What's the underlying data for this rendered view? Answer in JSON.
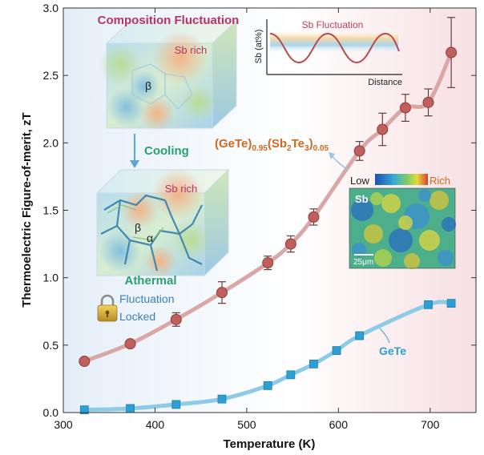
{
  "chart_data": {
    "type": "line",
    "title": "",
    "xlabel": "Temperature (K)",
    "ylabel": "Thermoelectric Figure-of-merit, zT",
    "xlim": [
      300,
      750
    ],
    "ylim": [
      0,
      3.0
    ],
    "x_ticks": [
      300,
      400,
      500,
      600,
      700
    ],
    "y_ticks": [
      0.0,
      0.5,
      1.0,
      1.5,
      2.0,
      2.5,
      3.0
    ],
    "x_tick_labels": [
      "300",
      "400",
      "500",
      "600",
      "700"
    ],
    "y_tick_labels": [
      "0.0",
      "0.5",
      "1.0",
      "1.5",
      "2.0",
      "2.5",
      "3.0"
    ],
    "series": [
      {
        "name": "(GeTe)0.95(Sb2Te3)0.05",
        "marker": "circle",
        "color": "#c0605e",
        "line_color": "#d9a8a6",
        "x": [
          323,
          373,
          423,
          473,
          523,
          548,
          573,
          623,
          648,
          673,
          698,
          723
        ],
        "y": [
          0.38,
          0.51,
          0.69,
          0.89,
          1.11,
          1.25,
          1.45,
          1.94,
          2.1,
          2.26,
          2.3,
          2.67
        ],
        "err": [
          0,
          0,
          0.05,
          0.08,
          0.05,
          0.06,
          0.06,
          0.07,
          0.12,
          0.1,
          0.1,
          0.26
        ]
      },
      {
        "name": "GeTe",
        "marker": "square",
        "color": "#2d9fd3",
        "line_color": "#8ccbe6",
        "x": [
          323,
          373,
          423,
          473,
          523,
          548,
          573,
          598,
          623,
          698,
          723
        ],
        "y": [
          0.02,
          0.03,
          0.06,
          0.1,
          0.2,
          0.28,
          0.36,
          0.46,
          0.57,
          0.8,
          0.81
        ],
        "err": []
      }
    ],
    "labels": {
      "composite": "(GeTe)0.95(Sb2Te3)0.05",
      "gete": "GeTe"
    }
  },
  "annotations": {
    "composition_title": "Composition Fluctuation",
    "sb_rich_top": "Sb rich",
    "beta_top": "β",
    "cooling": "Cooling",
    "sb_rich_bottom": "Sb rich",
    "beta_bottom": "β",
    "alpha_bottom": "α",
    "athermal": "Athermal",
    "fluctuation": "Fluctuation",
    "locked": "Locked",
    "formula": {
      "base": "(GeTe)",
      "sub1": "0.95",
      "mid": "(Sb",
      "sub2": "2",
      "te": "Te",
      "sub3": "3",
      "close": ")",
      "sub4": "0.05"
    },
    "inset_title": "Sb Fluctuation",
    "inset_ylabel": "Sb (at%)",
    "inset_xlabel": "Distance",
    "map_low": "Low",
    "map_rich": "Rich",
    "map_element": "Sb",
    "map_scale": "25μm"
  },
  "colors": {
    "composite": "#c0605e",
    "gete": "#2d9fd3",
    "annotation_magenta": "#b8336a",
    "annotation_green": "#2aa06d",
    "formula_orange": "#d2691e"
  }
}
